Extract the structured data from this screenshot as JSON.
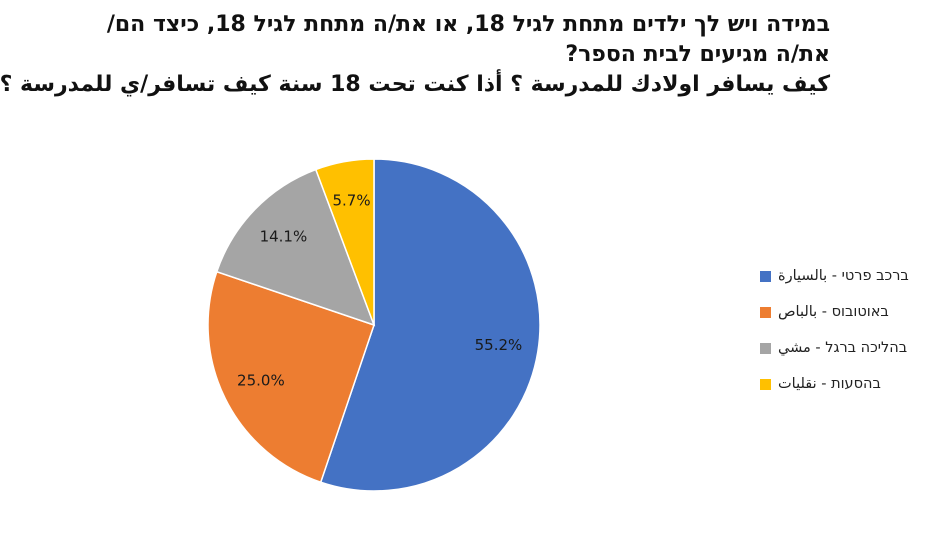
{
  "chart_data": {
    "type": "pie",
    "title_lines": [
      "במידה ויש לך ילדים מתחת לגיל 18, או את/ה מתחת לגיל 18, כיצד הם/",
      "את/ה מגיעים לבית הספר?",
      "كيف يسافر اولادك للمدرسة ؟ أذا كنت تحت 18 سنة كيف تسافر/ي للمدرسة ؟"
    ],
    "categories": [
      "ברכב פרטי - بالسيارة",
      "באוטובוס - بالباص",
      "בהליכה ברגל - مشي",
      "בהסעות - نقليات"
    ],
    "values": [
      55.2,
      25.0,
      14.1,
      5.7
    ],
    "labels": [
      "55.2%",
      "25.0%",
      "14.1%",
      "5.7%"
    ],
    "colors": [
      "#4472C4",
      "#ED7D31",
      "#A5A5A5",
      "#FFC000"
    ],
    "legend_position": "right"
  }
}
